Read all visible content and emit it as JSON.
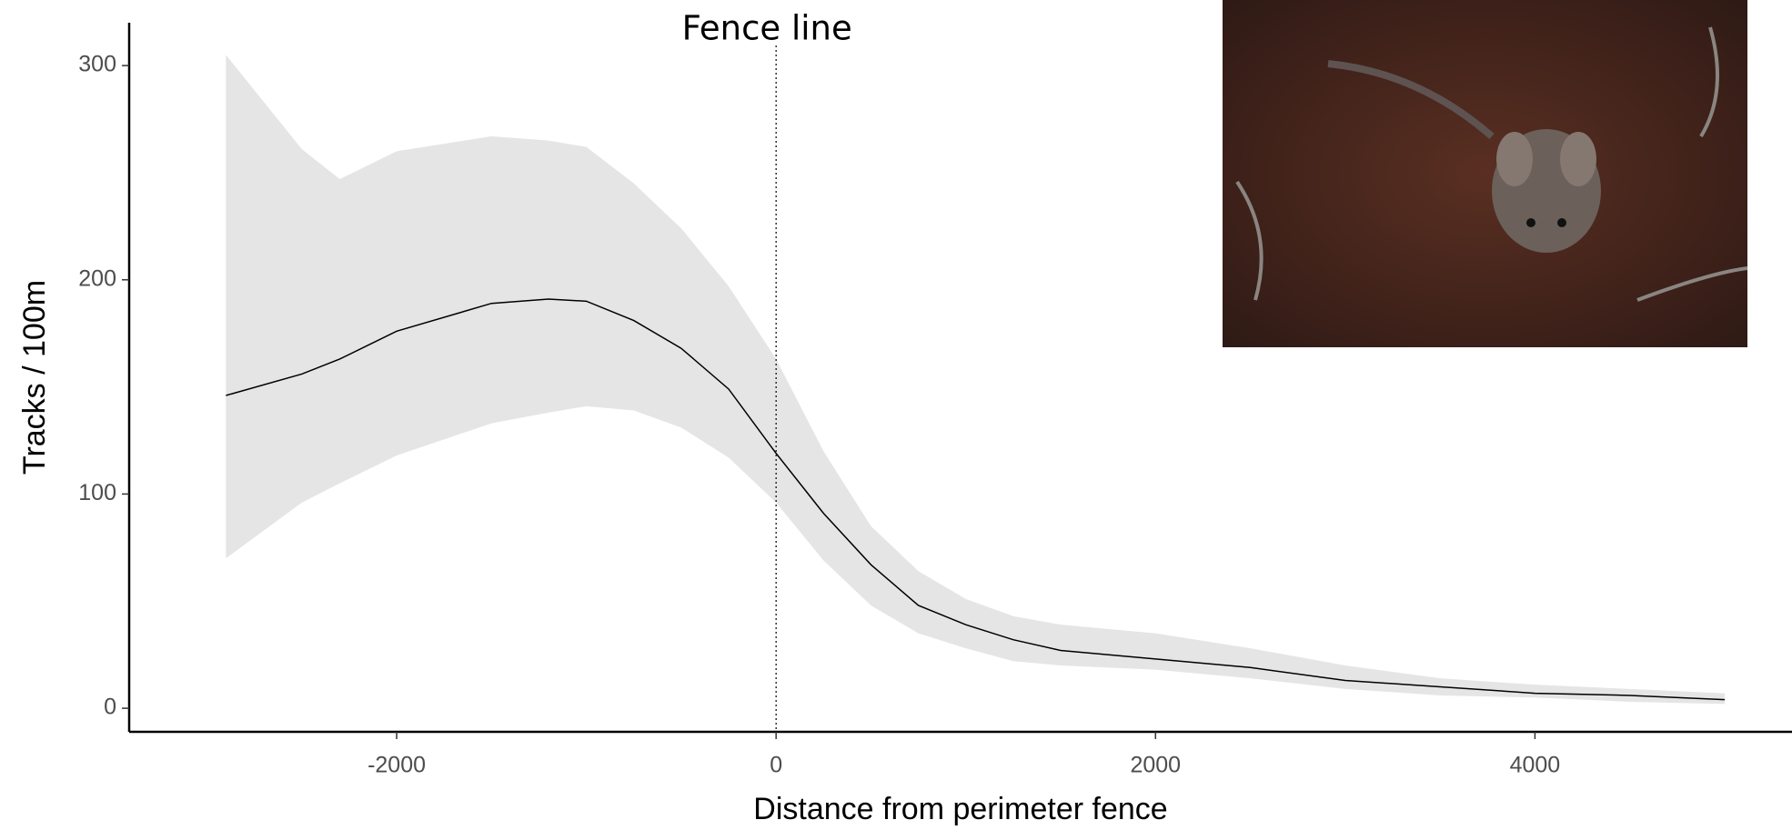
{
  "chart_data": {
    "type": "line",
    "x_label": "Distance from perimeter fence",
    "y_label": "Tracks / 100m",
    "annotation": {
      "x": 0,
      "label": "Fence line"
    },
    "x": [
      -2900,
      -2500,
      -2300,
      -2000,
      -1500,
      -1200,
      -1000,
      -750,
      -500,
      -250,
      0,
      250,
      500,
      750,
      1000,
      1250,
      1500,
      2000,
      2500,
      3000,
      3500,
      4000,
      4500,
      5000
    ],
    "values": [
      146,
      156,
      163,
      176,
      189,
      191,
      190,
      181,
      168,
      149,
      119,
      91,
      67,
      48,
      39,
      32,
      27,
      23,
      19,
      13,
      10,
      7,
      6,
      4
    ],
    "upper": [
      305,
      261,
      247,
      260,
      267,
      265,
      262,
      245,
      224,
      197,
      163,
      120,
      85,
      64,
      51,
      43,
      39,
      35,
      28,
      20,
      14,
      11,
      9,
      7
    ],
    "lower": [
      70,
      96,
      105,
      118,
      133,
      138,
      141,
      139,
      131,
      117,
      96,
      69,
      48,
      35,
      28,
      22,
      20,
      18,
      14,
      9,
      6,
      5,
      3,
      2
    ],
    "color": "#000000",
    "band_color": "#e5e5e5",
    "xlim": [
      -3410,
      5355
    ],
    "ylim": [
      -11,
      320
    ],
    "xticks": [
      -2000,
      0,
      2000,
      4000
    ],
    "yticks": [
      0,
      100,
      200,
      300
    ]
  }
}
